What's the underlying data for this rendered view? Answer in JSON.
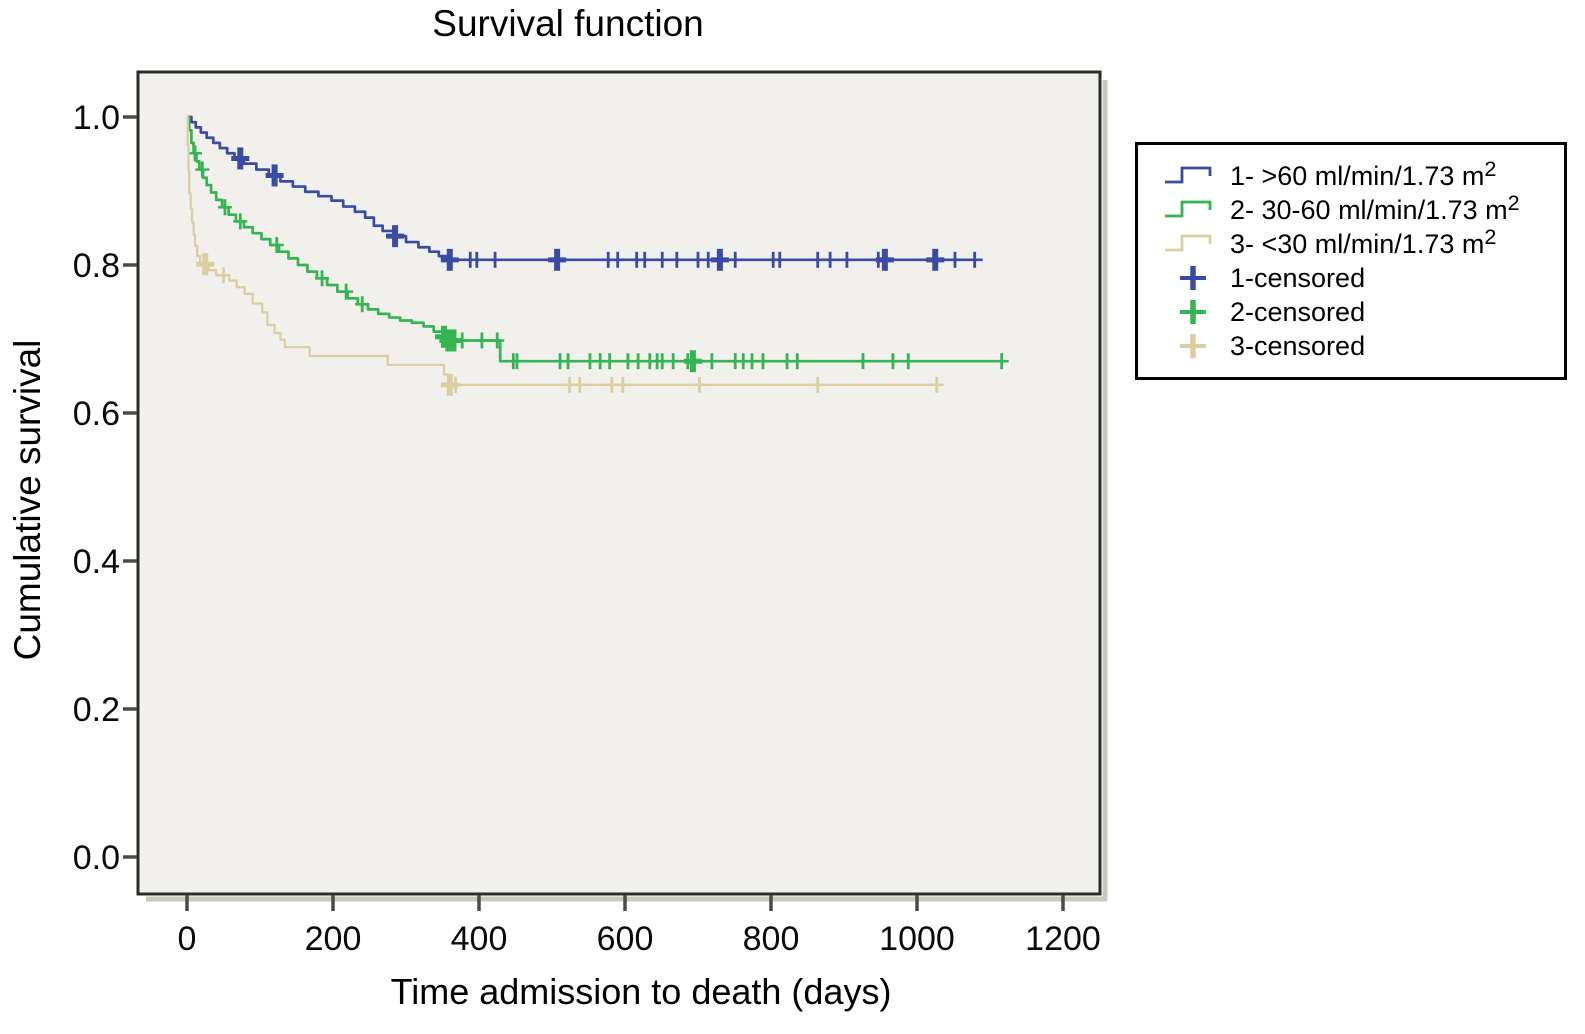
{
  "title": "Survival function",
  "axes": {
    "x": {
      "label": "Time admission to death (days)",
      "ticks": [
        0,
        200,
        400,
        600,
        800,
        1000,
        1200
      ]
    },
    "y": {
      "label": "Cumulative survival",
      "ticks": [
        0.0,
        0.2,
        0.4,
        0.6,
        0.8,
        1.0
      ]
    }
  },
  "colors": {
    "group1_blue": "#3A4BA3",
    "group2_green": "#35B452",
    "group3_tan": "#D9CFA0",
    "plot_background": "#F1F0ED",
    "frame": "#2B2B28",
    "tick": "#4A4A46",
    "text": "#0A0A0A",
    "shadow": "#C9C9C2",
    "legend_border": "#000000"
  },
  "legend": {
    "items": [
      {
        "label": "1- >60 ml/min/1.73 m",
        "sup": "2",
        "marker": "step-line",
        "color": "#3A4BA3"
      },
      {
        "label": "2- 30-60 ml/min/1.73 m",
        "sup": "2",
        "marker": "step-line",
        "color": "#35B452"
      },
      {
        "label": "3- <30 ml/min/1.73 m",
        "sup": "2",
        "marker": "step-line",
        "color": "#D9CFA0"
      },
      {
        "label": "1-censored",
        "sup": "",
        "marker": "plus",
        "color": "#3A4BA3"
      },
      {
        "label": "2-censored",
        "sup": "",
        "marker": "plus",
        "color": "#35B452"
      },
      {
        "label": "3-censored",
        "sup": "",
        "marker": "plus",
        "color": "#D9CFA0"
      }
    ]
  },
  "chart_data": {
    "type": "line",
    "subtype": "kaplan-meier-step",
    "title": "Survival function",
    "xlabel": "Time admission to death (days)",
    "ylabel": "Cumulative survival",
    "x_ticks": [
      0,
      200,
      400,
      600,
      800,
      1000,
      1200
    ],
    "y_ticks": [
      0.0,
      0.2,
      0.4,
      0.6,
      0.8,
      1.0
    ],
    "xlim": [
      -65,
      1255
    ],
    "ylim": [
      -0.05,
      1.06
    ],
    "grid": false,
    "legend_position": "right-outside",
    "series": [
      {
        "name": "1- >60 ml/min/1.73 m²",
        "color": "#3A4BA3",
        "width": 2.7,
        "end_day": 1090,
        "points": [
          [
            0,
            1.0
          ],
          [
            6,
            0.993
          ],
          [
            12,
            0.986
          ],
          [
            19,
            0.979
          ],
          [
            27,
            0.972
          ],
          [
            36,
            0.965
          ],
          [
            45,
            0.958
          ],
          [
            55,
            0.951
          ],
          [
            65,
            0.944
          ],
          [
            78,
            0.937
          ],
          [
            95,
            0.929
          ],
          [
            112,
            0.921
          ],
          [
            128,
            0.913
          ],
          [
            145,
            0.906
          ],
          [
            162,
            0.899
          ],
          [
            180,
            0.893
          ],
          [
            198,
            0.887
          ],
          [
            214,
            0.879
          ],
          [
            230,
            0.872
          ],
          [
            244,
            0.864
          ],
          [
            256,
            0.853
          ],
          [
            268,
            0.846
          ],
          [
            283,
            0.839
          ],
          [
            300,
            0.831
          ],
          [
            317,
            0.824
          ],
          [
            332,
            0.818
          ],
          [
            345,
            0.812
          ],
          [
            356,
            0.807
          ]
        ],
        "censored_days": [
          73,
          120,
          285,
          360,
          388,
          397,
          422,
          507,
          577,
          590,
          616,
          627,
          651,
          671,
          700,
          714,
          730,
          751,
          803,
          812,
          864,
          881,
          904,
          947,
          956,
          1025,
          1052,
          1079
        ],
        "censored_bold_days": [
          73,
          120,
          285,
          360,
          507,
          730,
          956,
          1025
        ]
      },
      {
        "name": "2- 30-60 ml/min/1.73 m²",
        "color": "#35B452",
        "width": 2.7,
        "end_day": 1123,
        "points": [
          [
            0,
            1.0
          ],
          [
            3,
            0.982
          ],
          [
            6,
            0.965
          ],
          [
            9,
            0.951
          ],
          [
            13,
            0.94
          ],
          [
            17,
            0.929
          ],
          [
            22,
            0.918
          ],
          [
            27,
            0.908
          ],
          [
            33,
            0.898
          ],
          [
            40,
            0.888
          ],
          [
            48,
            0.878
          ],
          [
            57,
            0.868
          ],
          [
            67,
            0.859
          ],
          [
            78,
            0.851
          ],
          [
            90,
            0.843
          ],
          [
            102,
            0.835
          ],
          [
            114,
            0.827
          ],
          [
            126,
            0.818
          ],
          [
            139,
            0.809
          ],
          [
            152,
            0.8
          ],
          [
            165,
            0.791
          ],
          [
            178,
            0.782
          ],
          [
            192,
            0.773
          ],
          [
            206,
            0.764
          ],
          [
            220,
            0.755
          ],
          [
            234,
            0.747
          ],
          [
            248,
            0.74
          ],
          [
            262,
            0.734
          ],
          [
            277,
            0.729
          ],
          [
            292,
            0.725
          ],
          [
            308,
            0.722
          ],
          [
            324,
            0.717
          ],
          [
            338,
            0.71
          ],
          [
            350,
            0.703
          ],
          [
            358,
            0.698
          ],
          [
            429,
            0.67
          ]
        ],
        "censored_days": [
          11,
          21,
          52,
          73,
          123,
          185,
          218,
          240,
          352,
          358,
          365,
          377,
          404,
          425,
          447,
          452,
          511,
          522,
          552,
          566,
          579,
          604,
          618,
          634,
          644,
          651,
          666,
          686,
          693,
          719,
          751,
          762,
          774,
          789,
          822,
          836,
          926,
          967,
          988,
          1116
        ],
        "censored_bold_days": [
          352,
          358,
          365,
          693
        ]
      },
      {
        "name": "3- <30 ml/min/1.73 m²",
        "color": "#D9CFA0",
        "width": 2.3,
        "end_day": 1034,
        "points": [
          [
            0,
            1.0
          ],
          [
            1,
            0.962
          ],
          [
            2,
            0.928
          ],
          [
            3,
            0.897
          ],
          [
            5,
            0.876
          ],
          [
            7,
            0.858
          ],
          [
            9,
            0.841
          ],
          [
            11,
            0.826
          ],
          [
            14,
            0.812
          ],
          [
            18,
            0.801
          ],
          [
            29,
            0.793
          ],
          [
            40,
            0.786
          ],
          [
            58,
            0.779
          ],
          [
            68,
            0.77
          ],
          [
            79,
            0.761
          ],
          [
            90,
            0.748
          ],
          [
            103,
            0.736
          ],
          [
            110,
            0.719
          ],
          [
            120,
            0.708
          ],
          [
            128,
            0.699
          ],
          [
            134,
            0.689
          ],
          [
            168,
            0.677
          ],
          [
            275,
            0.665
          ],
          [
            352,
            0.652
          ],
          [
            358,
            0.638
          ]
        ],
        "censored_days": [
          25,
          50,
          360,
          368,
          524,
          538,
          582,
          597,
          702,
          864,
          1027
        ],
        "censored_bold_days": [
          25,
          360
        ]
      }
    ]
  }
}
